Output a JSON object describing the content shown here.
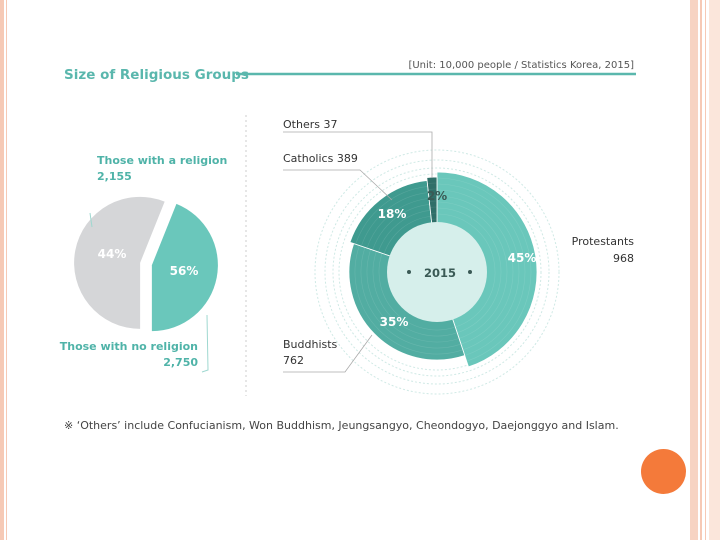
{
  "chart_data": [
    {
      "type": "pie",
      "title": "Size of Religious Groups",
      "unit_note": "[Unit: 10,000 people / Statistics Korea, 2015]",
      "slices": [
        {
          "label": "Those with a religion",
          "value": 2155,
          "value_text": "2,155",
          "percent": 44,
          "percent_text": "44%",
          "color": "#6ac7bb"
        },
        {
          "label": "Those with no religion",
          "value": 2750,
          "value_text": "2,750",
          "percent": 56,
          "percent_text": "56%",
          "color": "#d5d6d8"
        }
      ]
    },
    {
      "type": "pie",
      "center_label": "2015",
      "slices": [
        {
          "label": "Protestants",
          "value": 968,
          "value_text": "968",
          "percent": 45,
          "percent_text": "45%",
          "color": "#6ac7bb"
        },
        {
          "label": "Buddhists",
          "value": 762,
          "value_text": "762",
          "percent": 35,
          "percent_text": "35%",
          "color": "#52ada2"
        },
        {
          "label": "Catholics",
          "value": 389,
          "value_text": "389",
          "percent": 18,
          "percent_text": "18%",
          "color": "#3f9a8f"
        },
        {
          "label": "Others",
          "value": 37,
          "value_text": "37",
          "percent": 2,
          "percent_text": "2%",
          "color": "#2f6f68"
        }
      ]
    }
  ],
  "footnote": "※ ‘Others’ include Confucianism, Won Buddhism, Jeungsangyo, Cheondogyo, Daejonggyo and Islam.",
  "colors": {
    "accent": "#5ab7ad",
    "orange_dot": "#f47a3a",
    "border": "#f6c9b5"
  }
}
